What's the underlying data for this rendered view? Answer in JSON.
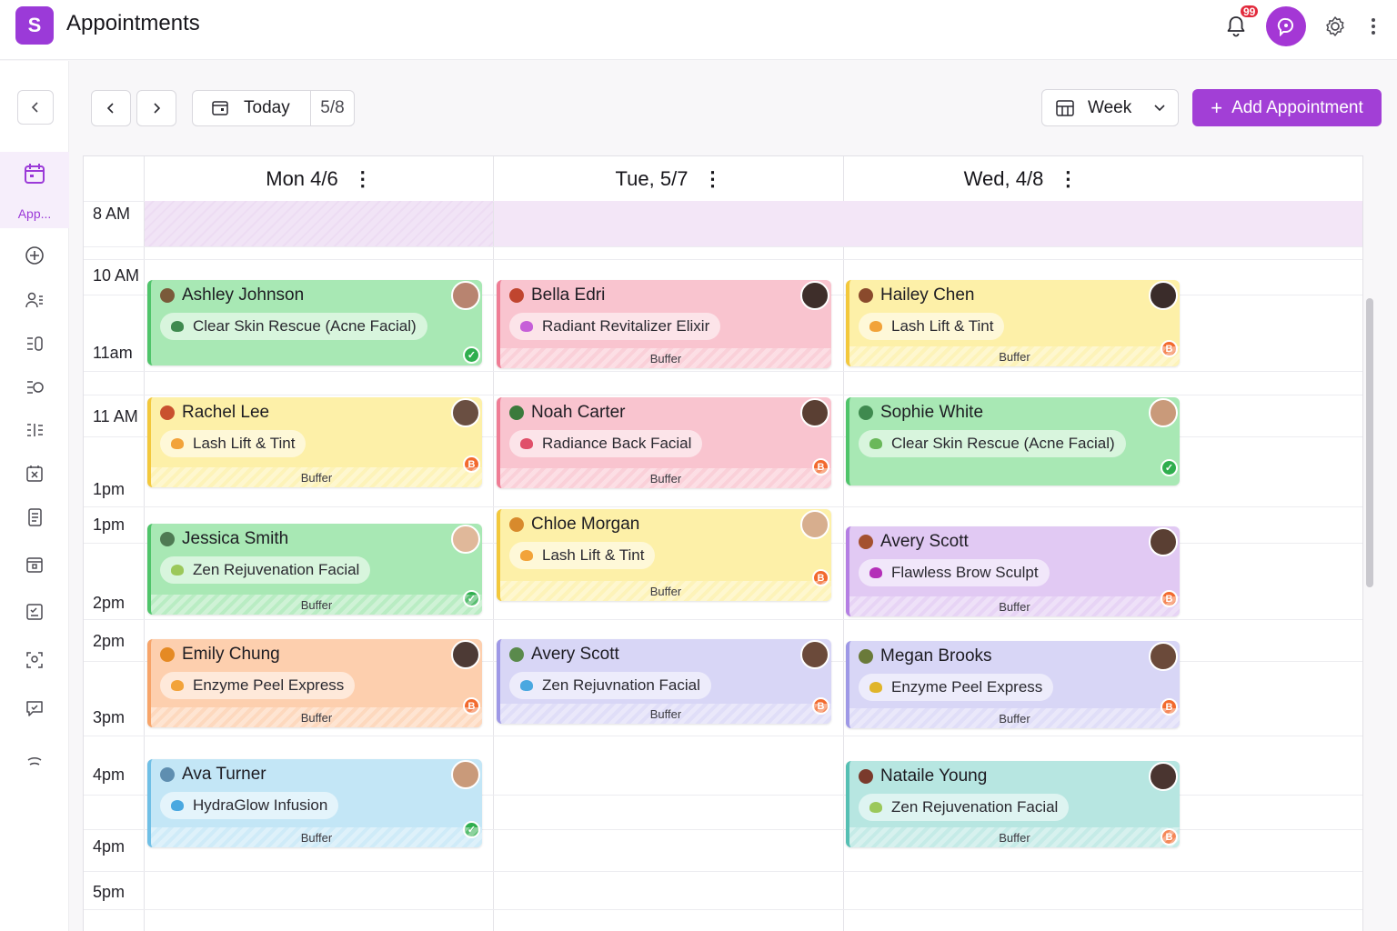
{
  "app": {
    "logo_letter": "S",
    "title": "Appointments",
    "notification_count": "99"
  },
  "sidebar": {
    "active_label": "App..."
  },
  "toolbar": {
    "today_label": "Today",
    "current_date": "5/8",
    "view_label": "Week",
    "add_label": "Add Appointment"
  },
  "days": [
    {
      "label": "Mon 4/6"
    },
    {
      "label": "Tue, 5/7"
    },
    {
      "label": "Wed, 4/8"
    }
  ],
  "time_labels": [
    "8 AM",
    "10 AM",
    "11am",
    "11 AM",
    "1pm",
    "1pm",
    "2pm",
    "2pm",
    "3pm",
    "4pm",
    "4pm",
    "5pm"
  ],
  "buffer_label": "Buffer",
  "appointments": [
    {
      "client": "Ashley Johnson",
      "service": "Clear Skin Rescue (Acne Facial)",
      "status": "done",
      "color": "green"
    },
    {
      "client": "Rachel Lee",
      "service": "Lash Lift & Tint",
      "status": "pending",
      "color": "yellow"
    },
    {
      "client": "Jessica Smith",
      "service": "Zen Rejuvenation Facial",
      "status": "done",
      "color": "green"
    },
    {
      "client": "Emily Chung",
      "service": "Enzyme Peel Express",
      "status": "pending",
      "color": "orange"
    },
    {
      "client": "Ava Turner",
      "service": "HydraGlow Infusion",
      "status": "done",
      "color": "blue"
    },
    {
      "client": "Bella Edri",
      "service": "Radiant Revitalizer Elixir",
      "status": "none",
      "color": "pink"
    },
    {
      "client": "Noah Carter",
      "service": "Radiance Back Facial",
      "status": "pending",
      "color": "pink"
    },
    {
      "client": "Chloe Morgan",
      "service": "Lash Lift & Tint",
      "status": "pending",
      "color": "yellow"
    },
    {
      "client": "Avery Scott",
      "service": "Zen Rejuvnation Facial",
      "status": "pending",
      "color": "lavender"
    },
    {
      "client": "Hailey Chen",
      "service": "Lash Lift & Tint",
      "status": "pending",
      "color": "yellow"
    },
    {
      "client": "Sophie White",
      "service": "Clear Skin Rescue (Acne Facial)",
      "status": "done",
      "color": "green"
    },
    {
      "client": "Avery Scott",
      "service": "Flawless Brow Sculpt",
      "status": "pending",
      "color": "purple"
    },
    {
      "client": "Megan Brooks",
      "service": "Enzyme Peel Express",
      "status": "pending",
      "color": "lavender"
    },
    {
      "client": "Nataile Young",
      "service": "Zen Rejuvenation Facial",
      "status": "pending",
      "color": "teal"
    }
  ],
  "status_glyphs": {
    "done": "✓",
    "pending": "B"
  },
  "colors": {
    "accent": "#a23fd6",
    "brand": "#9b3ad8",
    "badge": "#e22a3c"
  }
}
